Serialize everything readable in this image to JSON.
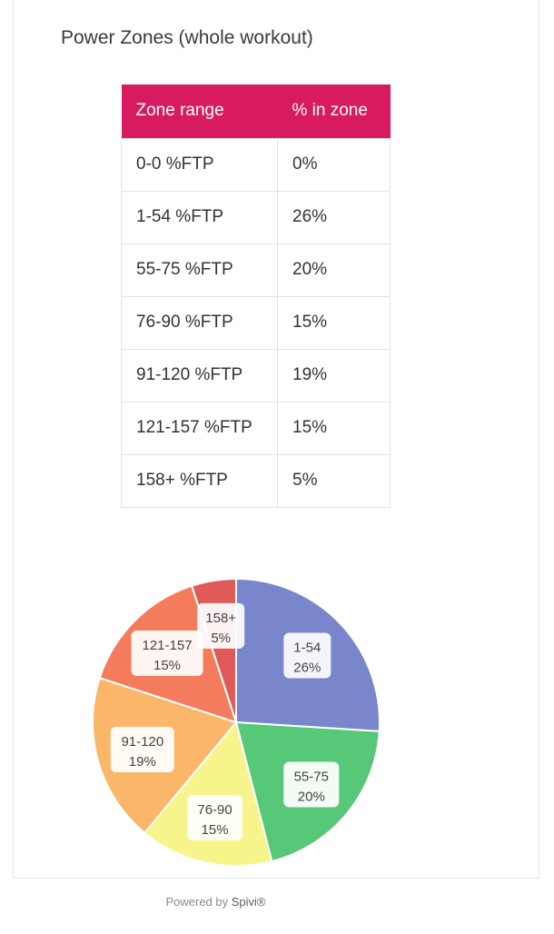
{
  "title": "Power Zones (whole workout)",
  "table": {
    "headers": [
      "Zone range",
      "% in zone"
    ],
    "rows": [
      [
        "0-0 %FTP",
        "0%"
      ],
      [
        "1-54 %FTP",
        "26%"
      ],
      [
        "55-75 %FTP",
        "20%"
      ],
      [
        "76-90 %FTP",
        "15%"
      ],
      [
        "91-120 %FTP",
        "19%"
      ],
      [
        "121-157 %FTP",
        "15%"
      ],
      [
        "158+ %FTP",
        "5%"
      ]
    ]
  },
  "chart_data": {
    "type": "pie",
    "slices": [
      {
        "label": "1-54",
        "value": 26,
        "text": "26%",
        "color": "#7986cb"
      },
      {
        "label": "55-75",
        "value": 20,
        "text": "20%",
        "color": "#57c878"
      },
      {
        "label": "76-90",
        "value": 15,
        "text": "15%",
        "color": "#f7f48c"
      },
      {
        "label": "91-120",
        "value": 19,
        "text": "19%",
        "color": "#fbb769"
      },
      {
        "label": "121-157",
        "value": 15,
        "text": "15%",
        "color": "#f47c5d"
      },
      {
        "label": "158+",
        "value": 5,
        "text": "5%",
        "color": "#e05a5a"
      }
    ]
  },
  "footer": {
    "powered_by": "Powered by",
    "brand": "Spivi®"
  },
  "colors": {
    "header_bg": "#d81b60",
    "header_text": "#ffffff"
  }
}
